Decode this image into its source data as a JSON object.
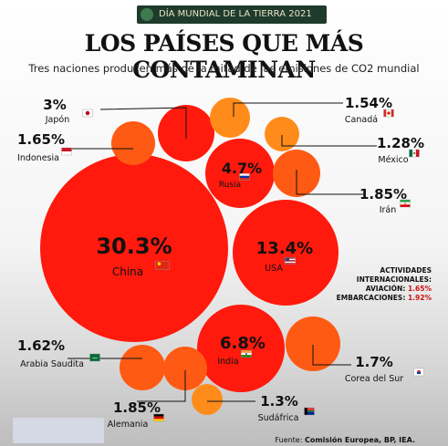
{
  "banner": "DÍA MUNDIAL DE LA TIERRA 2021",
  "title": "LOS PAÍSES QUE MÁS CONTAMINAN",
  "subtitle": "Tres naciones producen más de la mitad de las emisiones de CO2 mundial",
  "note": {
    "line1": "ACTIVIDADES",
    "line2": "INTERNACIONALES:",
    "aviation_label": "AVIACIÓN:",
    "aviation_value": "1.65%",
    "shipping_label": "EMBARCACIONES:",
    "shipping_value": "1.92%"
  },
  "source": {
    "prefix": "Fuente:",
    "text": "Comisión Europea, BP, IEA."
  },
  "colors": {
    "red": "#ff1a0d",
    "orange_red": "#ff5a14",
    "orange": "#ff8c1a"
  },
  "chart_data": {
    "type": "bubble",
    "unit": "%",
    "items": [
      {
        "country": "China",
        "value": 30.3,
        "flag": "china-flag"
      },
      {
        "country": "USA",
        "value": 13.4,
        "flag": "usa-flag"
      },
      {
        "country": "India",
        "value": 6.8,
        "flag": "india-flag"
      },
      {
        "country": "Rusia",
        "value": 4.7,
        "flag": "russia-flag"
      },
      {
        "country": "Japón",
        "value": 3.0,
        "flag": "japan-flag"
      },
      {
        "country": "Alemania",
        "value": 1.85,
        "flag": "germany-flag"
      },
      {
        "country": "Irán",
        "value": 1.85,
        "flag": "iran-flag"
      },
      {
        "country": "Corea del Sur",
        "value": 1.7,
        "flag": "south-korea-flag"
      },
      {
        "country": "Indonesia",
        "value": 1.65,
        "flag": "indonesia-flag"
      },
      {
        "country": "Arabia Saudita",
        "value": 1.62,
        "flag": "saudi-arabia-flag"
      },
      {
        "country": "Canadá",
        "value": 1.54,
        "flag": "canada-flag"
      },
      {
        "country": "Sudáfrica",
        "value": 1.3,
        "flag": "south-africa-flag"
      },
      {
        "country": "México",
        "value": 1.28,
        "flag": "mexico-flag"
      }
    ]
  }
}
